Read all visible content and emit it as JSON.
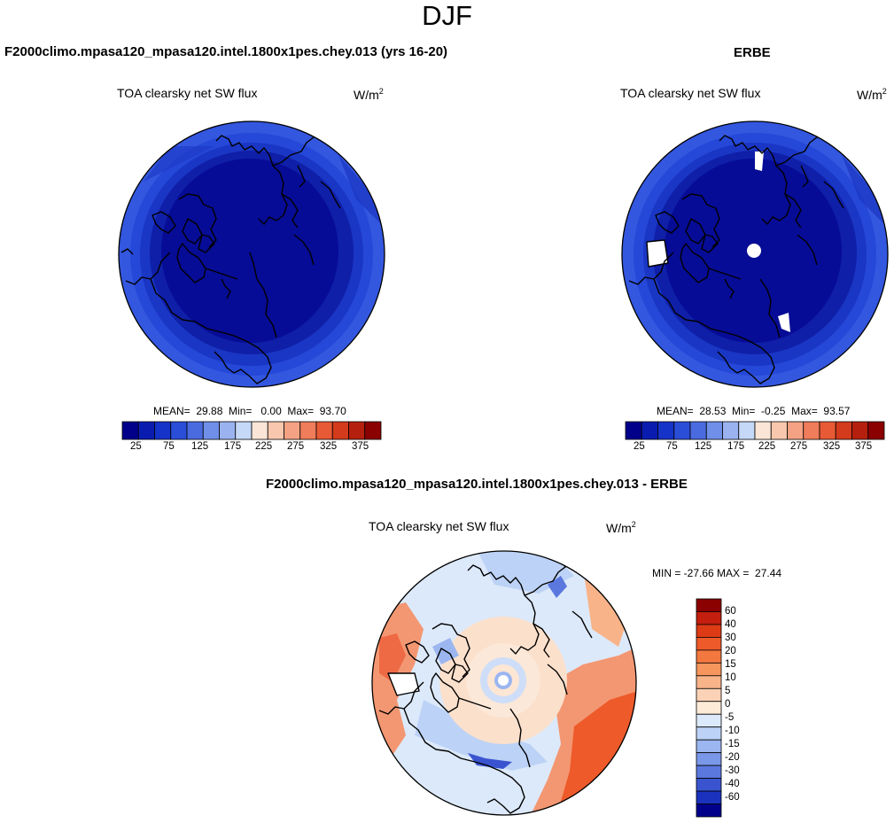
{
  "figure": {
    "title": "DJF",
    "panels": [
      {
        "heading": "F2000climo.mpasa120_mpasa120.intel.1800x1pes.chey.013 (yrs 16-20)",
        "variable": "TOA clearsky net SW flux",
        "units_base": "W/m",
        "units_exp": "2",
        "stats": "MEAN=  29.88  Min=   0.00  Max=  93.70"
      },
      {
        "heading": "ERBE",
        "variable": "TOA clearsky net SW flux",
        "units_base": "W/m",
        "units_exp": "2",
        "stats": "MEAN=  28.53  Min=  -0.25  Max=  93.57"
      },
      {
        "heading": "F2000climo.mpasa120_mpasa120.intel.1800x1pes.chey.013 - ERBE",
        "variable": "TOA clearsky net SW flux",
        "units_base": "W/m",
        "units_exp": "2",
        "stats": "MIN = -27.66 MAX =  27.44"
      }
    ],
    "abs_colorbar": {
      "colors": [
        "#00008b",
        "#0a1cb0",
        "#1533c8",
        "#2b4ed8",
        "#4a6be0",
        "#6f8fe8",
        "#9ab3f0",
        "#c6d8f8",
        "#fbe5d6",
        "#f8c7ad",
        "#f4a283",
        "#ef7c5a",
        "#e85a35",
        "#d43a1c",
        "#b5200e",
        "#8b0000"
      ],
      "labels": [
        "25",
        "75",
        "125",
        "175",
        "225",
        "275",
        "325",
        "375"
      ]
    },
    "diff_colorbar": {
      "colors": [
        "#8b0000",
        "#c41e0e",
        "#dd3a16",
        "#ee5a2a",
        "#f3783f",
        "#f6955e",
        "#f8b389",
        "#fcd2b6",
        "#fdebd8",
        "#dce9fa",
        "#bcd2f6",
        "#9bb6f0",
        "#7a98e8",
        "#5a78de",
        "#3a54d0",
        "#1b32be",
        "#00008b"
      ],
      "labels": [
        "60",
        "40",
        "30",
        "20",
        "15",
        "10",
        "5",
        "0",
        "-5",
        "-10",
        "-15",
        "-20",
        "-30",
        "-40",
        "-60"
      ]
    }
  }
}
